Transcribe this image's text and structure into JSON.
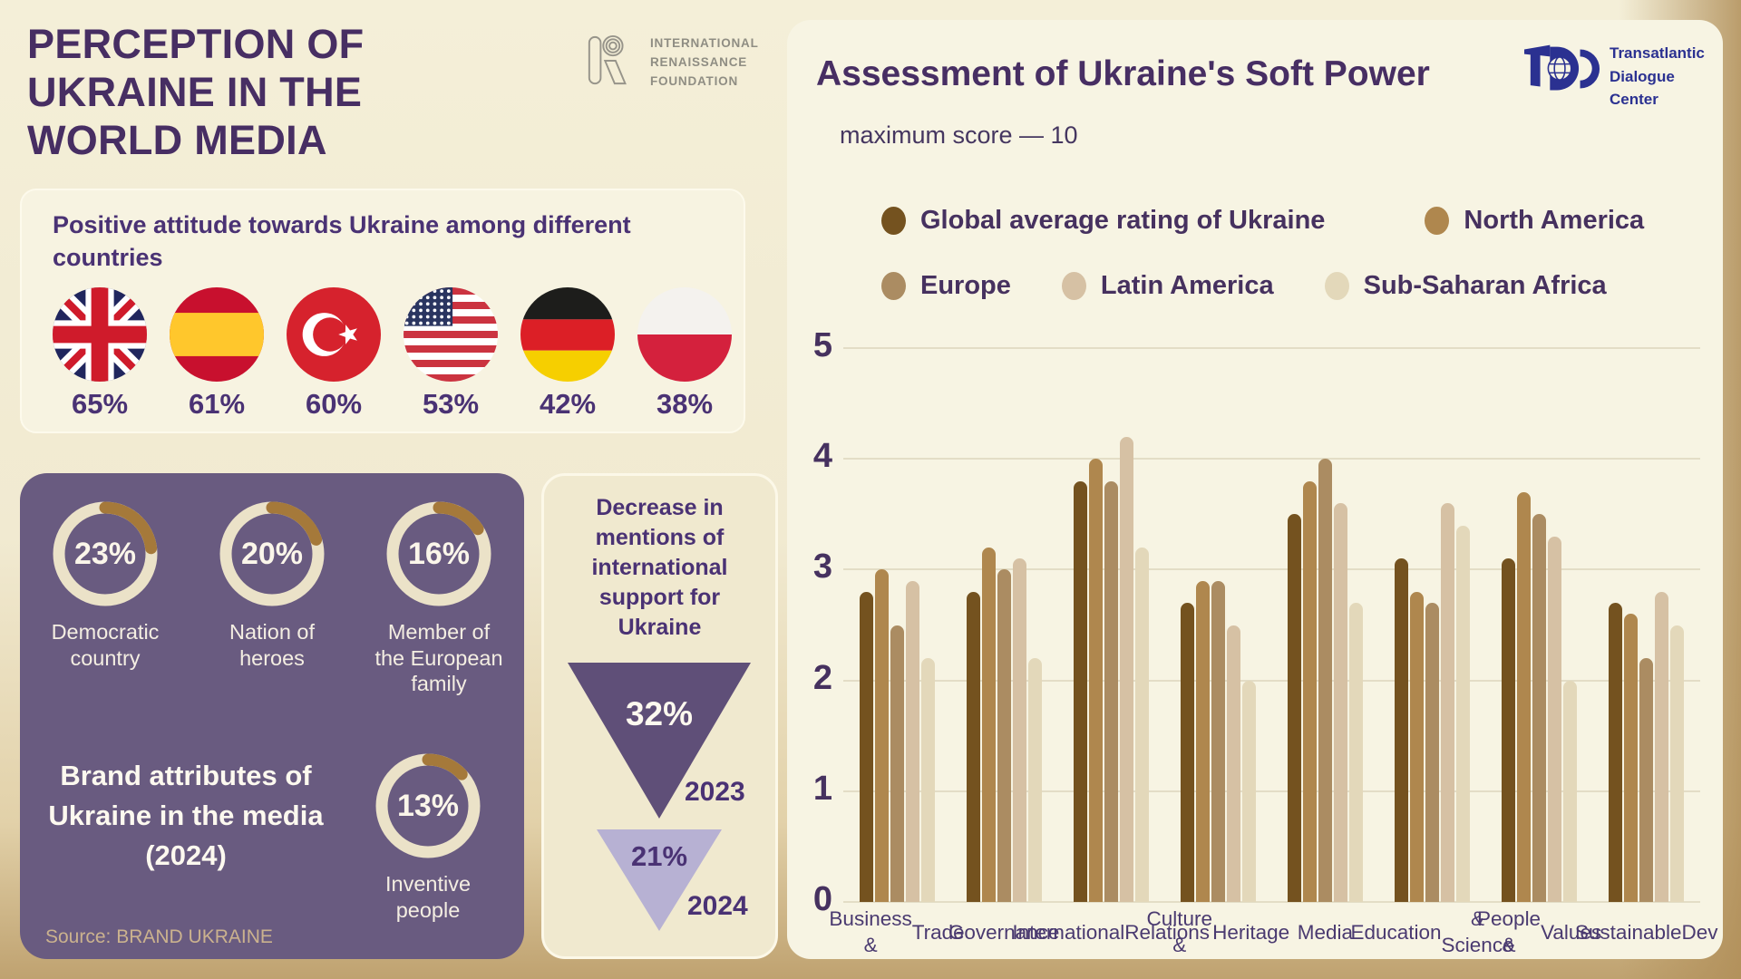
{
  "header": {
    "title": "PERCEPTION OF UKRAINE IN THE WORLD MEDIA",
    "irf_logo_lines": [
      "INTERNATIONAL",
      "RENAISSANCE",
      "FOUNDATION"
    ]
  },
  "tdc_logo_lines": [
    "Transatlantic",
    "Dialogue",
    "Center"
  ],
  "colors": {
    "background_top": "#f4efd8",
    "background_bottom": "#bfa270",
    "panel_cream": "#f7f4e3",
    "box_cream": "#f0e9cf",
    "purple_text": "#46315f",
    "purple_box": "#695b80",
    "triangle_dark": "#5f4f78",
    "triangle_lavender": "#b7b1d3",
    "donut_ring": "#ebe2c8",
    "donut_arc": "#a5793a",
    "source_text": "#cbb28e",
    "logo_navy": "#2b3191",
    "logo_gray": "#97948a"
  },
  "chart_data": [
    {
      "type": "bar",
      "title": "Assessment of Ukraine's Soft Power",
      "subtitle": "maximum score — 10",
      "xlabel": "",
      "ylabel": "",
      "ylim": [
        0,
        5
      ],
      "yticks": [
        0,
        1,
        2,
        3,
        4,
        5
      ],
      "grid": true,
      "legend_position": "top",
      "categories": [
        "Business & Trade",
        "Governance",
        "International Relations",
        "Culture & Heritage",
        "Media",
        "Education & Science",
        "People & Values",
        "Sustainable Dev"
      ],
      "categories_wrapped": [
        [
          "Business &",
          "Trade"
        ],
        [
          "Governance"
        ],
        [
          "International",
          "Relations"
        ],
        [
          "Culture &",
          "Heritage"
        ],
        [
          "Media"
        ],
        [
          "Education",
          "& Science"
        ],
        [
          "People &",
          "Values"
        ],
        [
          "Sustainable",
          "Dev"
        ]
      ],
      "series": [
        {
          "name": "Global average rating of Ukraine",
          "color": "#74521f",
          "values": [
            2.8,
            2.8,
            3.8,
            2.7,
            3.5,
            3.1,
            3.1,
            2.7
          ]
        },
        {
          "name": "North America",
          "color": "#af874e",
          "values": [
            3.0,
            3.2,
            4.0,
            2.9,
            3.8,
            2.8,
            3.7,
            2.6
          ]
        },
        {
          "name": "Europe",
          "color": "#ab8c62",
          "values": [
            2.5,
            3.0,
            3.8,
            2.9,
            4.0,
            2.7,
            3.5,
            2.2
          ]
        },
        {
          "name": "Latin America",
          "color": "#d6c1a4",
          "values": [
            2.9,
            3.1,
            4.2,
            2.5,
            3.6,
            3.6,
            3.3,
            2.8
          ]
        },
        {
          "name": "Sub-Saharan Africa",
          "color": "#e3d8ba",
          "values": [
            2.2,
            2.2,
            3.2,
            2.0,
            2.7,
            3.4,
            2.0,
            2.5
          ]
        }
      ]
    },
    {
      "type": "donut-set",
      "title": "Brand attributes of Ukraine in the media (2024)",
      "source": "Source: BRAND UKRAINE",
      "max": 100,
      "unit": "%",
      "items": [
        {
          "label": "Democratic country",
          "value": 23
        },
        {
          "label": "Nation of heroes",
          "value": 20
        },
        {
          "label": "Member of the European family",
          "value": 16
        },
        {
          "label": "Inventive people",
          "value": 13
        }
      ]
    },
    {
      "type": "pictogram-percent",
      "title": "Positive attitude towards Ukraine among different countries",
      "unit": "%",
      "items": [
        {
          "country": "United Kingdom",
          "flag": "uk",
          "value": 65
        },
        {
          "country": "Spain",
          "flag": "spain",
          "value": 61
        },
        {
          "country": "Turkey",
          "flag": "turkey",
          "value": 60
        },
        {
          "country": "United States",
          "flag": "usa",
          "value": 53
        },
        {
          "country": "Germany",
          "flag": "germany",
          "value": 42
        },
        {
          "country": "Poland",
          "flag": "poland",
          "value": 38
        }
      ]
    },
    {
      "type": "decrease-triangles",
      "title": "Decrease in mentions of international support for Ukraine",
      "unit": "%",
      "items": [
        {
          "year": "2023",
          "value": 32
        },
        {
          "year": "2024",
          "value": 21
        }
      ]
    }
  ]
}
